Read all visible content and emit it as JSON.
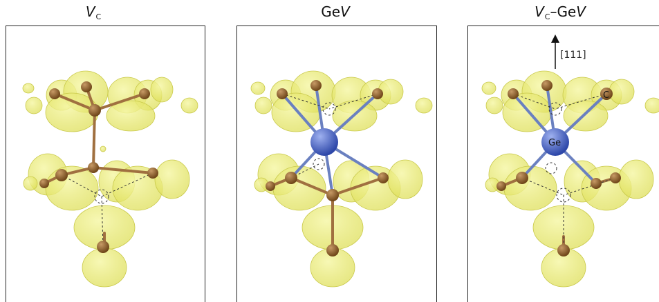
{
  "panels": [
    {
      "id": "vc",
      "title": {
        "main": "V",
        "sub": "C",
        "rest": ""
      },
      "atoms": [],
      "arrow_label": ""
    },
    {
      "id": "gev",
      "title": {
        "main": "Ge",
        "italic": "V"
      },
      "atoms": [],
      "arrow_label": ""
    },
    {
      "id": "vc-gev",
      "title": {
        "main": "V",
        "sub": "C",
        "sep": "–",
        "rest": "Ge",
        "italic": "V"
      },
      "atom_labels": {
        "germanium": "Ge",
        "carbon": "C"
      },
      "arrow_label": "[111]"
    }
  ],
  "colors": {
    "isosurface": "#e8ea6a",
    "isosurface_edge": "#c9c94a",
    "carbon": "#8a5a2b",
    "bond_carbon": "#a07040",
    "germanium": "#4a66c8",
    "bond_germanium": "#6a80c0",
    "vacancy_dash": "#333333",
    "frame": "#222222"
  }
}
